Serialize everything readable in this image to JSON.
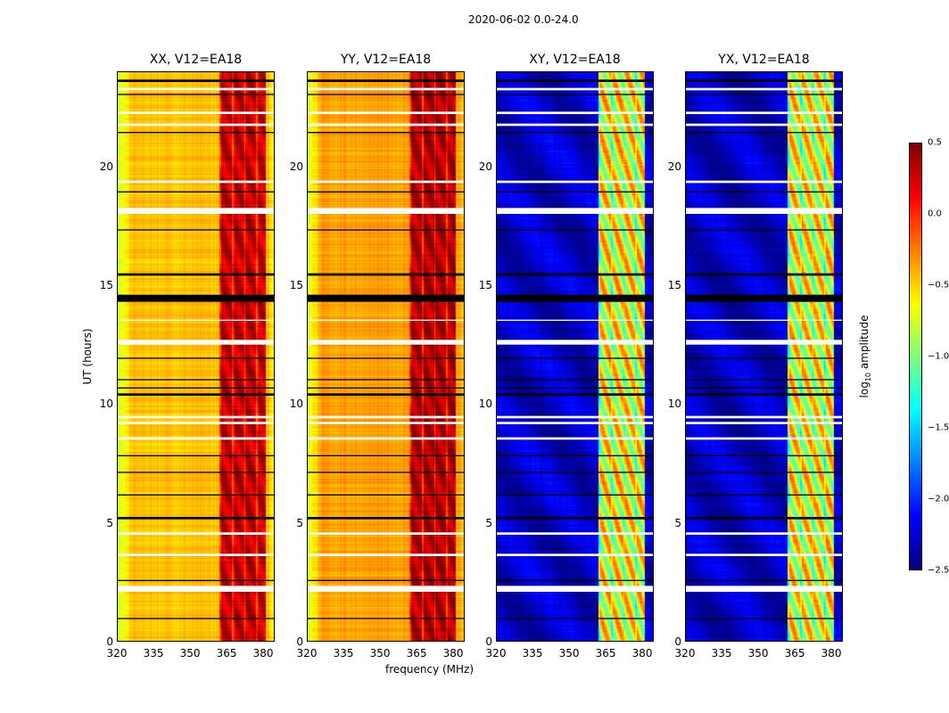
{
  "chart_data": {
    "type": "heatmap",
    "title": "2020-06-02 0.0-24.0",
    "xlabel": "frequency (MHz)",
    "ylabel": "UT (hours)",
    "xlim": [
      320,
      385
    ],
    "ylim": [
      0,
      24
    ],
    "xticks": [
      "320",
      "335",
      "350",
      "365",
      "380"
    ],
    "xtick_values": [
      320,
      335,
      350,
      365,
      380
    ],
    "yticks": [
      "0",
      "5",
      "10",
      "15",
      "20"
    ],
    "ytick_values": [
      0,
      5,
      10,
      15,
      20
    ],
    "colorbar": {
      "label": "log10 amplitude",
      "label_main": "log",
      "label_sub": "10",
      "label_rest": " amplitude",
      "range": [
        -2.5,
        0.5
      ],
      "ticks": [
        "0.5",
        "0.0",
        "−0.5",
        "−1.0",
        "−1.5",
        "−2.0",
        "−2.5"
      ],
      "tick_values": [
        0.5,
        0.0,
        -0.5,
        -1.0,
        -1.5,
        -2.0,
        -2.5
      ],
      "colormap": "jet"
    },
    "panels": [
      {
        "title": "XX, V12=EA18",
        "base": -0.45,
        "edge": -0.8,
        "band": 0.15,
        "band_range": [
          362,
          381
        ]
      },
      {
        "title": "YY, V12=EA18",
        "base": -0.35,
        "edge": -0.75,
        "band": 0.2,
        "band_range": [
          362,
          381
        ]
      },
      {
        "title": "XY, V12=EA18",
        "base": -2.3,
        "edge": -2.3,
        "band": -1.1,
        "band_range": [
          362,
          381
        ]
      },
      {
        "title": "YX, V12=EA18",
        "base": -2.3,
        "edge": -2.3,
        "band": -1.1,
        "band_range": [
          362,
          381
        ]
      }
    ],
    "flagged_hours_white": [
      [
        2.1,
        2.35
      ],
      [
        3.6,
        3.7
      ],
      [
        4.5,
        4.6
      ],
      [
        8.5,
        8.6
      ],
      [
        9.15,
        9.25
      ],
      [
        9.4,
        9.5
      ],
      [
        12.5,
        12.7
      ],
      [
        13.5,
        13.55
      ],
      [
        18.0,
        18.25
      ],
      [
        19.3,
        19.4
      ],
      [
        21.7,
        21.8
      ],
      [
        22.2,
        22.3
      ],
      [
        23.2,
        23.3
      ]
    ],
    "flagged_hours_black": [
      [
        0.95,
        1.0
      ],
      [
        2.55,
        2.6
      ],
      [
        5.15,
        5.25
      ],
      [
        6.15,
        6.2
      ],
      [
        7.1,
        7.15
      ],
      [
        7.8,
        7.85
      ],
      [
        10.35,
        10.45
      ],
      [
        10.65,
        10.7
      ],
      [
        11.0,
        11.05
      ],
      [
        11.9,
        11.95
      ],
      [
        14.3,
        14.6
      ],
      [
        15.4,
        15.5
      ],
      [
        17.3,
        17.35
      ],
      [
        18.9,
        18.95
      ],
      [
        21.4,
        21.45
      ],
      [
        23.0,
        23.05
      ],
      [
        23.55,
        23.65
      ]
    ]
  }
}
